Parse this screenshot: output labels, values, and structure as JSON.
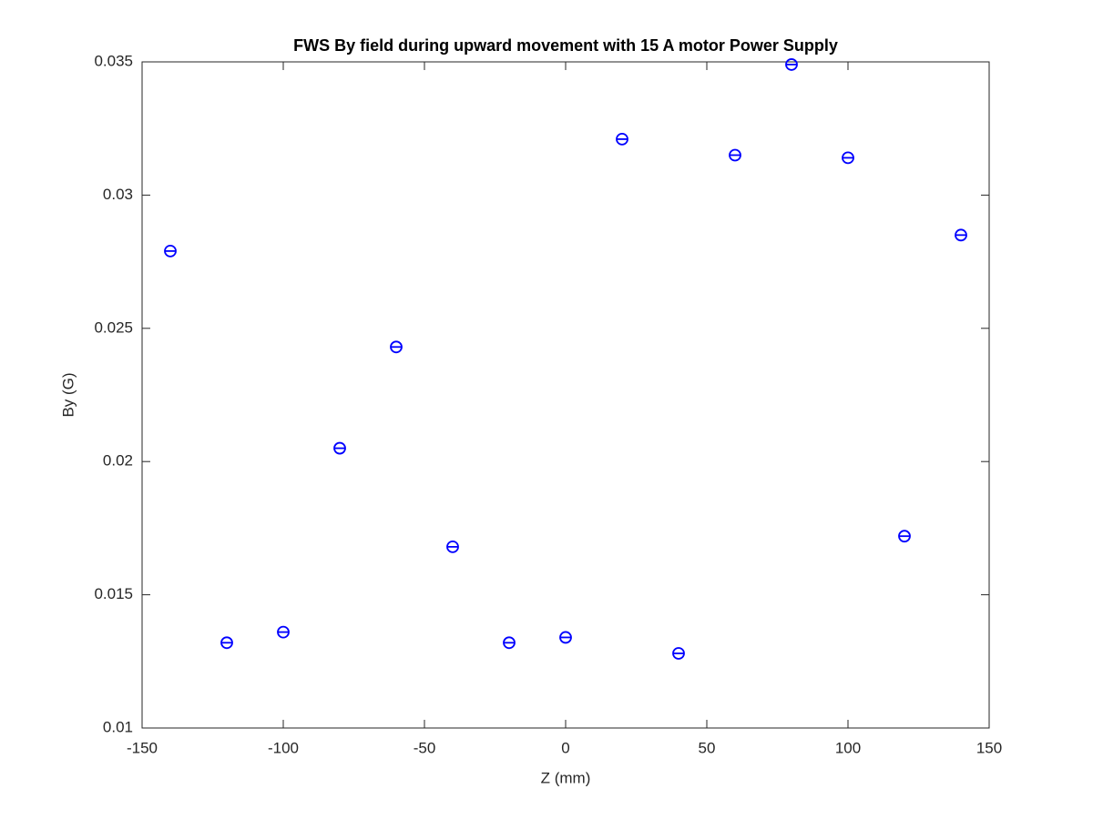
{
  "chart_data": {
    "type": "scatter",
    "title": "FWS By field during upward movement with 15 A motor Power Supply",
    "xlabel": "Z (mm)",
    "ylabel": "By (G)",
    "x": [
      -140,
      -120,
      -100,
      -80,
      -60,
      -40,
      -20,
      0,
      20,
      40,
      60,
      80,
      100,
      120,
      140
    ],
    "series": [
      {
        "name": null,
        "color": "#0000ff",
        "values": [
          0.0279,
          0.0132,
          0.0136,
          0.0205,
          0.0243,
          0.0168,
          0.0132,
          0.0134,
          0.0321,
          0.0128,
          0.0315,
          0.0349,
          0.0314,
          0.0172,
          0.0285
        ]
      }
    ],
    "xlim": [
      -150,
      150
    ],
    "xticks": [
      -150,
      -100,
      -50,
      0,
      50,
      100,
      150
    ],
    "ylim": [
      0.01,
      0.035
    ],
    "yticks": [
      0.01,
      0.015,
      0.02,
      0.025,
      0.03,
      0.035
    ],
    "grid": false
  }
}
